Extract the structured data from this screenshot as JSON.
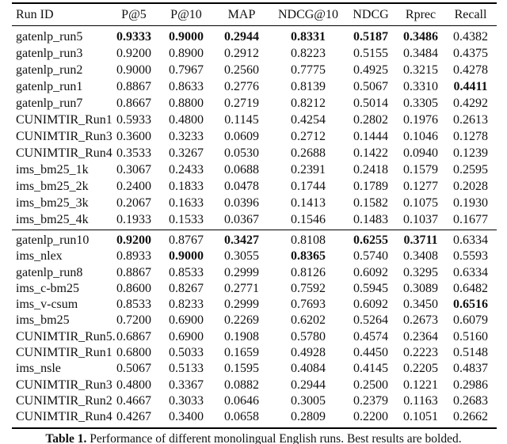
{
  "table": {
    "columns": [
      "Run ID",
      "P@5",
      "P@10",
      "MAP",
      "NDCG@10",
      "NDCG",
      "Rprec",
      "Recall"
    ],
    "sections": [
      {
        "rows": [
          {
            "run_id": "gatenlp_run5",
            "values": [
              "0.9333",
              "0.9000",
              "0.2944",
              "0.8331",
              "0.5187",
              "0.3486",
              "0.4382"
            ],
            "bold": [
              0,
              1,
              2,
              3,
              4,
              5
            ]
          },
          {
            "run_id": "gatenlp_run3",
            "values": [
              "0.9200",
              "0.8900",
              "0.2912",
              "0.8223",
              "0.5155",
              "0.3484",
              "0.4375"
            ],
            "bold": []
          },
          {
            "run_id": "gatenlp_run2",
            "values": [
              "0.9000",
              "0.7967",
              "0.2560",
              "0.7775",
              "0.4925",
              "0.3215",
              "0.4278"
            ],
            "bold": []
          },
          {
            "run_id": "gatenlp_run1",
            "values": [
              "0.8867",
              "0.8633",
              "0.2776",
              "0.8139",
              "0.5067",
              "0.3310",
              "0.4411"
            ],
            "bold": [
              6
            ]
          },
          {
            "run_id": "gatenlp_run7",
            "values": [
              "0.8667",
              "0.8800",
              "0.2719",
              "0.8212",
              "0.5014",
              "0.3305",
              "0.4292"
            ],
            "bold": []
          },
          {
            "run_id": "CUNIMTIR_Run1",
            "values": [
              "0.5933",
              "0.4800",
              "0.1145",
              "0.4254",
              "0.2802",
              "0.1976",
              "0.2613"
            ],
            "bold": []
          },
          {
            "run_id": "CUNIMTIR_Run3",
            "values": [
              "0.3600",
              "0.3233",
              "0.0609",
              "0.2712",
              "0.1444",
              "0.1046",
              "0.1278"
            ],
            "bold": []
          },
          {
            "run_id": "CUNIMTIR_Run4",
            "values": [
              "0.3533",
              "0.3267",
              "0.0530",
              "0.2688",
              "0.1422",
              "0.0940",
              "0.1239"
            ],
            "bold": []
          },
          {
            "run_id": "ims_bm25_1k",
            "values": [
              "0.3067",
              "0.2433",
              "0.0688",
              "0.2391",
              "0.2418",
              "0.1579",
              "0.2595"
            ],
            "bold": []
          },
          {
            "run_id": "ims_bm25_2k",
            "values": [
              "0.2400",
              "0.1833",
              "0.0478",
              "0.1744",
              "0.1789",
              "0.1277",
              "0.2028"
            ],
            "bold": []
          },
          {
            "run_id": "ims_bm25_3k",
            "values": [
              "0.2067",
              "0.1633",
              "0.0396",
              "0.1413",
              "0.1582",
              "0.1075",
              "0.1930"
            ],
            "bold": []
          },
          {
            "run_id": "ims_bm25_4k",
            "values": [
              "0.1933",
              "0.1533",
              "0.0367",
              "0.1546",
              "0.1483",
              "0.1037",
              "0.1677"
            ],
            "bold": []
          }
        ]
      },
      {
        "rows": [
          {
            "run_id": "gatenlp_run10",
            "values": [
              "0.9200",
              "0.8767",
              "0.3427",
              "0.8108",
              "0.6255",
              "0.3711",
              "0.6334"
            ],
            "bold": [
              0,
              2,
              4,
              5
            ]
          },
          {
            "run_id": "ims_nlex",
            "values": [
              "0.8933",
              "0.9000",
              "0.3055",
              "0.8365",
              "0.5740",
              "0.3408",
              "0.5593"
            ],
            "bold": [
              1,
              3
            ]
          },
          {
            "run_id": "gatenlp_run8",
            "values": [
              "0.8867",
              "0.8533",
              "0.2999",
              "0.8126",
              "0.6092",
              "0.3295",
              "0.6334"
            ],
            "bold": []
          },
          {
            "run_id": "ims_c-bm25",
            "values": [
              "0.8600",
              "0.8267",
              "0.2771",
              "0.7592",
              "0.5945",
              "0.3089",
              "0.6482"
            ],
            "bold": []
          },
          {
            "run_id": "ims_v-csum",
            "values": [
              "0.8533",
              "0.8233",
              "0.2999",
              "0.7693",
              "0.6092",
              "0.3450",
              "0.6516"
            ],
            "bold": [
              6
            ]
          },
          {
            "run_id": "ims_bm25",
            "values": [
              "0.7200",
              "0.6900",
              "0.2269",
              "0.6202",
              "0.5264",
              "0.2673",
              "0.6079"
            ],
            "bold": []
          },
          {
            "run_id": "CUNIMTIR_Run5.",
            "values": [
              "0.6867",
              "0.6900",
              "0.1908",
              "0.5780",
              "0.4574",
              "0.2364",
              "0.5160"
            ],
            "bold": []
          },
          {
            "run_id": "CUNIMTIR_Run1",
            "values": [
              "0.6800",
              "0.5033",
              "0.1659",
              "0.4928",
              "0.4450",
              "0.2223",
              "0.5148"
            ],
            "bold": []
          },
          {
            "run_id": "ims_nsle",
            "values": [
              "0.5067",
              "0.5133",
              "0.1595",
              "0.4084",
              "0.4145",
              "0.2205",
              "0.4837"
            ],
            "bold": []
          },
          {
            "run_id": "CUNIMTIR_Run3",
            "values": [
              "0.4800",
              "0.3367",
              "0.0882",
              "0.2944",
              "0.2500",
              "0.1221",
              "0.2986"
            ],
            "bold": []
          },
          {
            "run_id": "CUNIMTIR_Run2",
            "values": [
              "0.4667",
              "0.3033",
              "0.0646",
              "0.3005",
              "0.2379",
              "0.1163",
              "0.2683"
            ],
            "bold": []
          },
          {
            "run_id": "CUNIMTIR_Run4",
            "values": [
              "0.4267",
              "0.3400",
              "0.0658",
              "0.2809",
              "0.2200",
              "0.1051",
              "0.2662"
            ],
            "bold": []
          }
        ]
      }
    ]
  },
  "caption": {
    "label": "Table 1.",
    "text": "Performance of different monolingual English runs. Best results are bolded."
  }
}
